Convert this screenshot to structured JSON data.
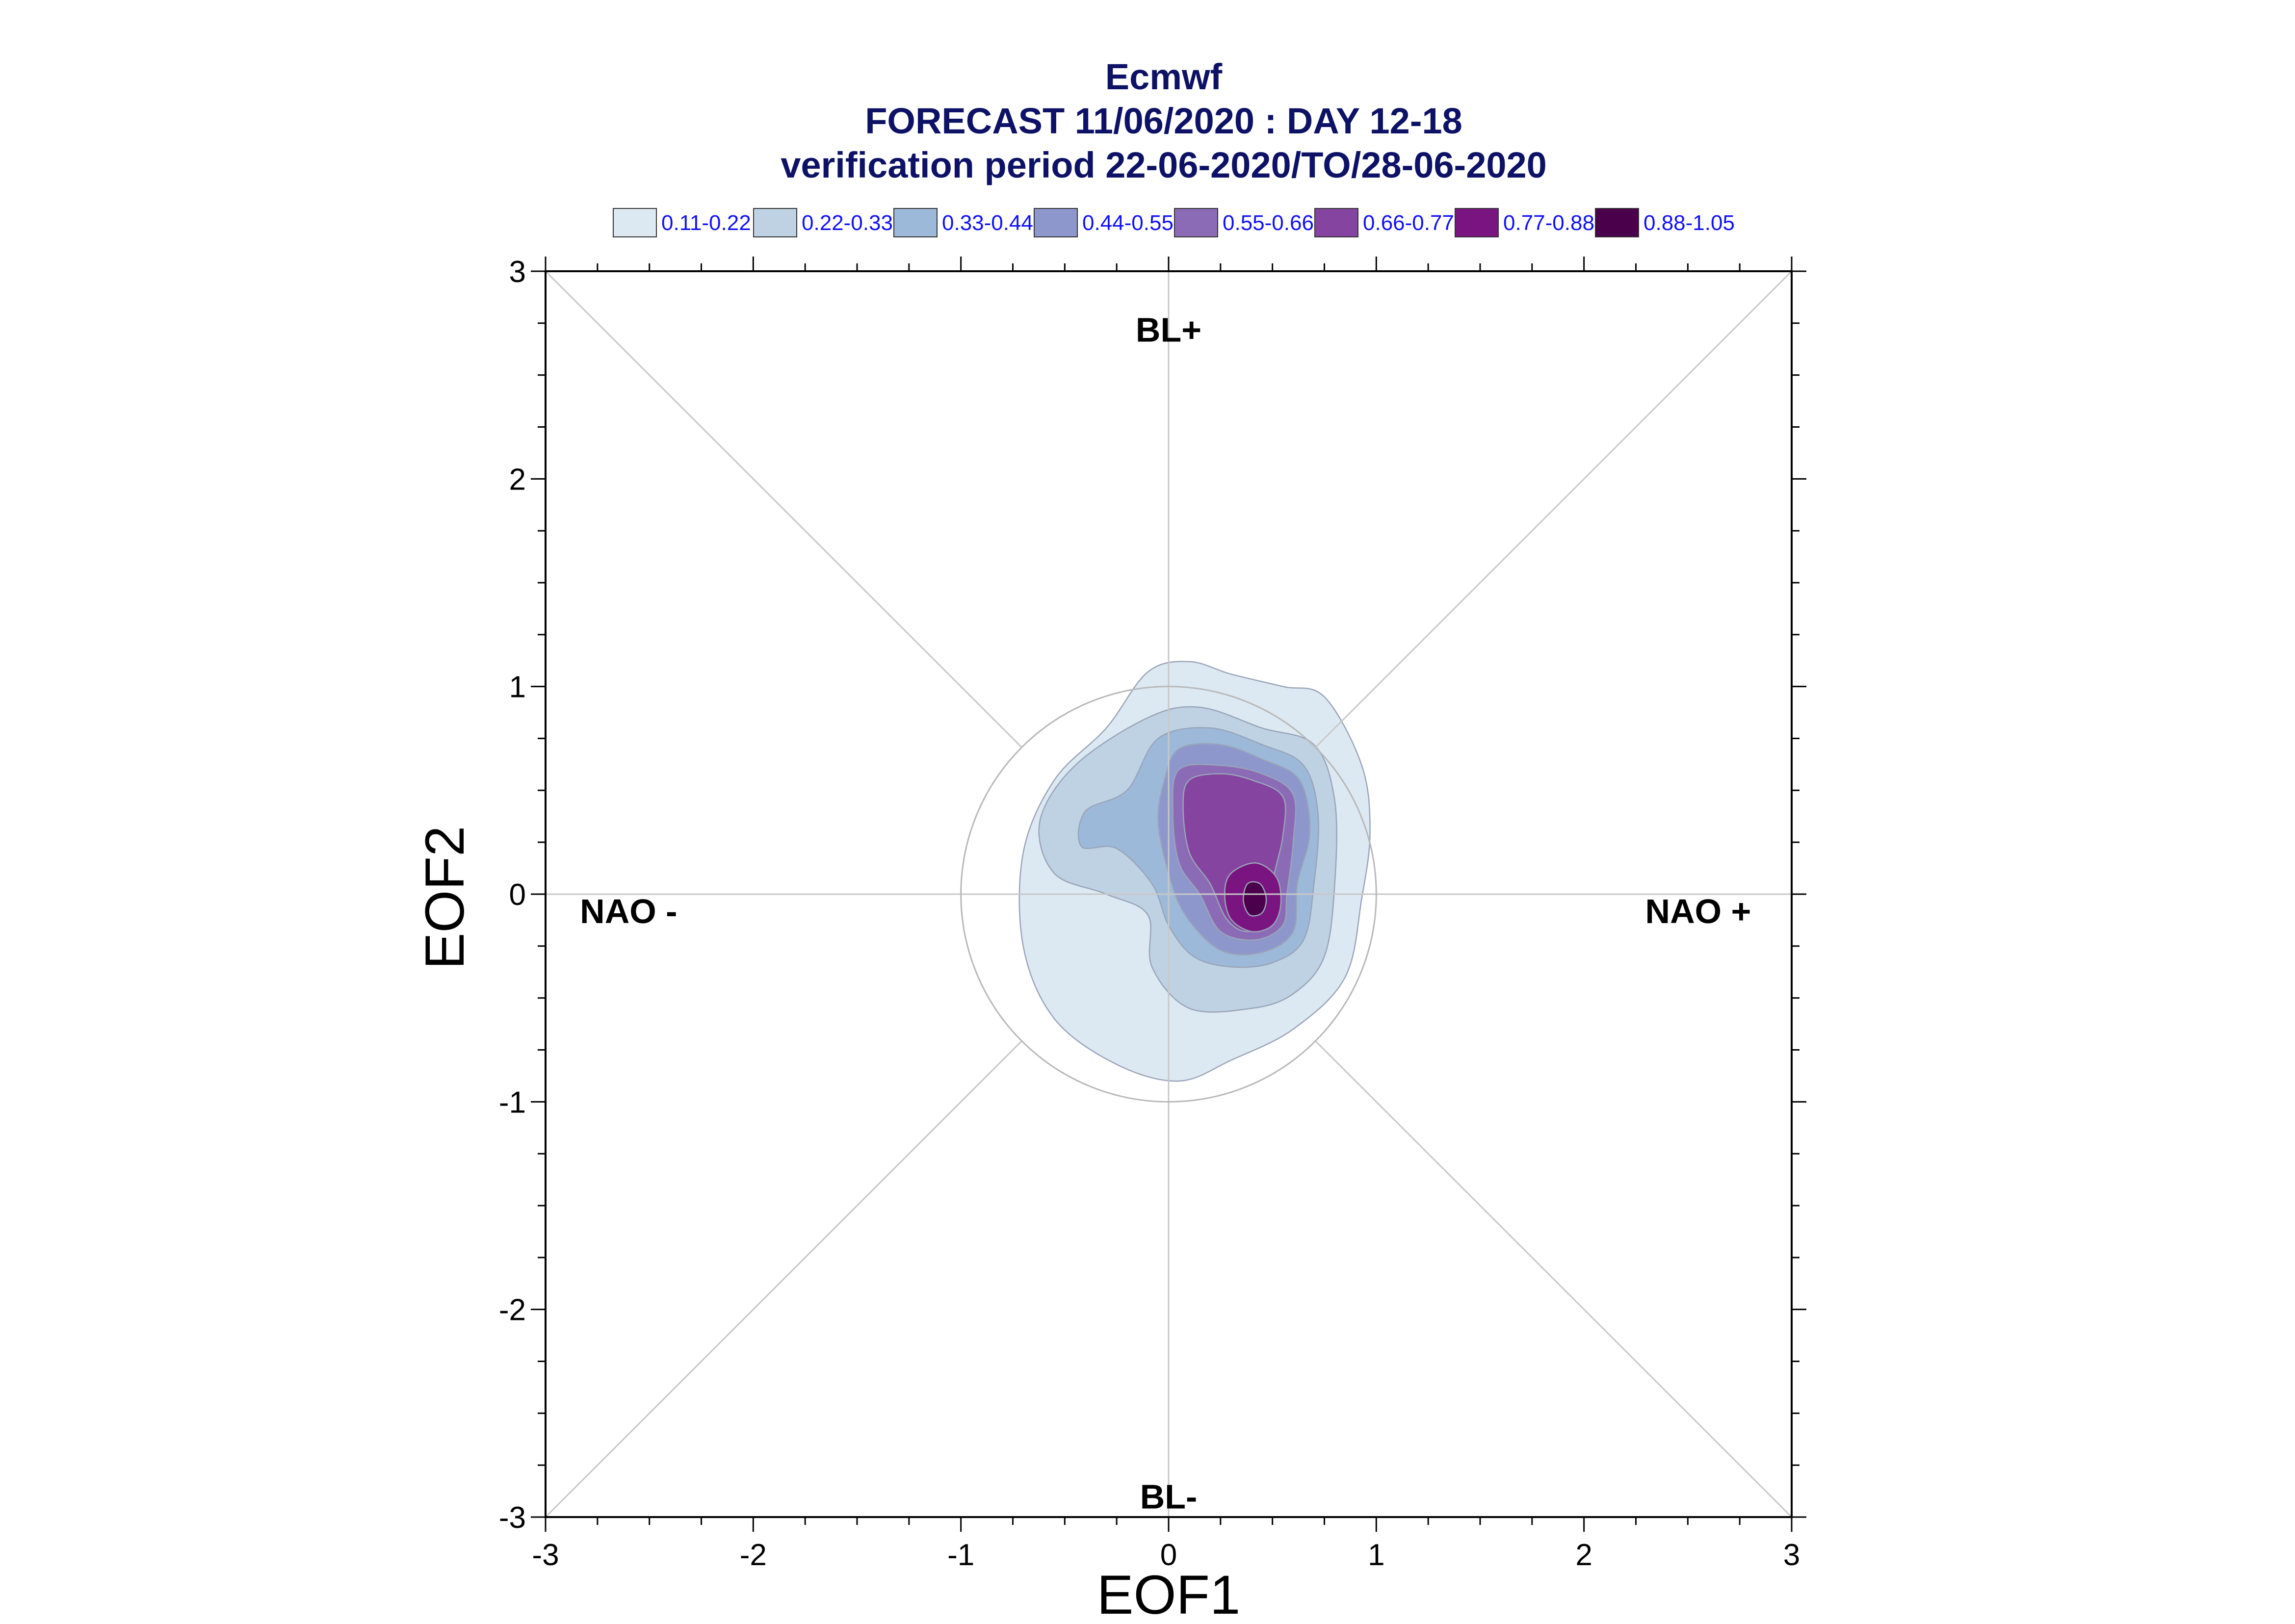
{
  "chart_data": {
    "type": "contour",
    "title": [
      "Ecmwf",
      "FORECAST 11/06/2020 : DAY 12-18",
      "verification period 22-06-2020/TO/28-06-2020"
    ],
    "xlabel": "EOF1",
    "ylabel": "EOF2",
    "xlim": [
      -3,
      3
    ],
    "ylim": [
      -3,
      3
    ],
    "x_ticks": [
      "-3",
      "-2",
      "-1",
      "0",
      "1",
      "2",
      "3"
    ],
    "y_ticks": [
      "-3",
      "-2",
      "-1",
      "0",
      "1",
      "2",
      "3"
    ],
    "legend": [
      {
        "label": "0.11-0.22",
        "color": "#dde9f2"
      },
      {
        "label": "0.22-0.33",
        "color": "#bed2e4"
      },
      {
        "label": "0.33-0.44",
        "color": "#9db9d9"
      },
      {
        "label": "0.44-0.55",
        "color": "#8d97cc"
      },
      {
        "label": "0.55-0.66",
        "color": "#8b6bb6"
      },
      {
        "label": "0.66-0.77",
        "color": "#84449f"
      },
      {
        "label": "0.77-0.88",
        "color": "#7a1480"
      },
      {
        "label": "0.88-1.05",
        "color": "#4a004a"
      }
    ],
    "regime_labels": [
      {
        "text": "BL+",
        "x": 0,
        "y": 2.72
      },
      {
        "text": "BL-",
        "x": 0,
        "y": -2.9
      },
      {
        "text": "NAO -",
        "x": -2.6,
        "y": -0.08
      },
      {
        "text": "NAO +",
        "x": 2.55,
        "y": -0.08
      }
    ],
    "reference_circle": {
      "center": [
        0,
        0
      ],
      "radius": 1
    },
    "grid": "diagonals and zero lines",
    "contours": [
      {
        "level": "0.11-0.22",
        "points": [
          [
            -0.1,
            1.07
          ],
          [
            0.1,
            1.12
          ],
          [
            0.3,
            1.06
          ],
          [
            0.55,
            1.0
          ],
          [
            0.75,
            0.95
          ],
          [
            0.93,
            0.62
          ],
          [
            0.97,
            0.3
          ],
          [
            0.93,
            -0.02
          ],
          [
            0.85,
            -0.4
          ],
          [
            0.6,
            -0.65
          ],
          [
            0.3,
            -0.8
          ],
          [
            0.05,
            -0.9
          ],
          [
            -0.25,
            -0.82
          ],
          [
            -0.55,
            -0.6
          ],
          [
            -0.7,
            -0.25
          ],
          [
            -0.7,
            0.2
          ],
          [
            -0.55,
            0.55
          ],
          [
            -0.3,
            0.8
          ]
        ]
      },
      {
        "level": "0.22-0.33",
        "points": [
          [
            -0.1,
            0.85
          ],
          [
            0.15,
            0.9
          ],
          [
            0.45,
            0.8
          ],
          [
            0.7,
            0.72
          ],
          [
            0.8,
            0.45
          ],
          [
            0.8,
            0.05
          ],
          [
            0.75,
            -0.3
          ],
          [
            0.6,
            -0.48
          ],
          [
            0.4,
            -0.55
          ],
          [
            0.1,
            -0.55
          ],
          [
            -0.08,
            -0.35
          ],
          [
            -0.1,
            -0.1
          ],
          [
            -0.3,
            0.0
          ],
          [
            -0.55,
            0.1
          ],
          [
            -0.62,
            0.35
          ],
          [
            -0.45,
            0.62
          ]
        ]
      },
      {
        "level": "0.33-0.44",
        "points": [
          [
            -0.05,
            0.75
          ],
          [
            0.2,
            0.8
          ],
          [
            0.45,
            0.72
          ],
          [
            0.65,
            0.62
          ],
          [
            0.72,
            0.38
          ],
          [
            0.7,
            0.05
          ],
          [
            0.65,
            -0.22
          ],
          [
            0.5,
            -0.33
          ],
          [
            0.3,
            -0.35
          ],
          [
            0.12,
            -0.3
          ],
          [
            0.0,
            -0.15
          ],
          [
            -0.08,
            0.05
          ],
          [
            -0.25,
            0.22
          ],
          [
            -0.42,
            0.23
          ],
          [
            -0.4,
            0.4
          ],
          [
            -0.2,
            0.5
          ]
        ]
      },
      {
        "level": "0.44-0.55",
        "points": [
          [
            0.05,
            0.7
          ],
          [
            0.25,
            0.72
          ],
          [
            0.45,
            0.65
          ],
          [
            0.63,
            0.55
          ],
          [
            0.68,
            0.3
          ],
          [
            0.62,
            0.05
          ],
          [
            0.6,
            -0.18
          ],
          [
            0.45,
            -0.28
          ],
          [
            0.25,
            -0.27
          ],
          [
            0.08,
            -0.1
          ],
          [
            0.0,
            0.1
          ],
          [
            -0.05,
            0.35
          ],
          [
            -0.02,
            0.55
          ]
        ]
      },
      {
        "level": "0.55-0.66",
        "points": [
          [
            0.05,
            0.6
          ],
          [
            0.25,
            0.62
          ],
          [
            0.45,
            0.58
          ],
          [
            0.6,
            0.48
          ],
          [
            0.6,
            0.25
          ],
          [
            0.57,
            0.0
          ],
          [
            0.55,
            -0.15
          ],
          [
            0.42,
            -0.22
          ],
          [
            0.25,
            -0.18
          ],
          [
            0.15,
            0.0
          ],
          [
            0.05,
            0.15
          ],
          [
            0.02,
            0.4
          ]
        ]
      },
      {
        "level": "0.66-0.77",
        "points": [
          [
            0.1,
            0.55
          ],
          [
            0.25,
            0.58
          ],
          [
            0.4,
            0.55
          ],
          [
            0.55,
            0.47
          ],
          [
            0.55,
            0.28
          ],
          [
            0.5,
            0.05
          ],
          [
            0.5,
            -0.12
          ],
          [
            0.38,
            -0.18
          ],
          [
            0.28,
            -0.12
          ],
          [
            0.2,
            0.05
          ],
          [
            0.1,
            0.2
          ],
          [
            0.07,
            0.42
          ]
        ]
      },
      {
        "level": "0.77-0.88",
        "points": [
          [
            0.3,
            0.1
          ],
          [
            0.42,
            0.15
          ],
          [
            0.52,
            0.08
          ],
          [
            0.54,
            -0.05
          ],
          [
            0.5,
            -0.15
          ],
          [
            0.4,
            -0.18
          ],
          [
            0.3,
            -0.12
          ],
          [
            0.27,
            0.0
          ]
        ]
      },
      {
        "level": "0.88-1.05",
        "points": [
          [
            0.38,
            0.05
          ],
          [
            0.44,
            0.05
          ],
          [
            0.47,
            -0.02
          ],
          [
            0.45,
            -0.09
          ],
          [
            0.39,
            -0.1
          ],
          [
            0.36,
            -0.03
          ]
        ]
      }
    ]
  }
}
